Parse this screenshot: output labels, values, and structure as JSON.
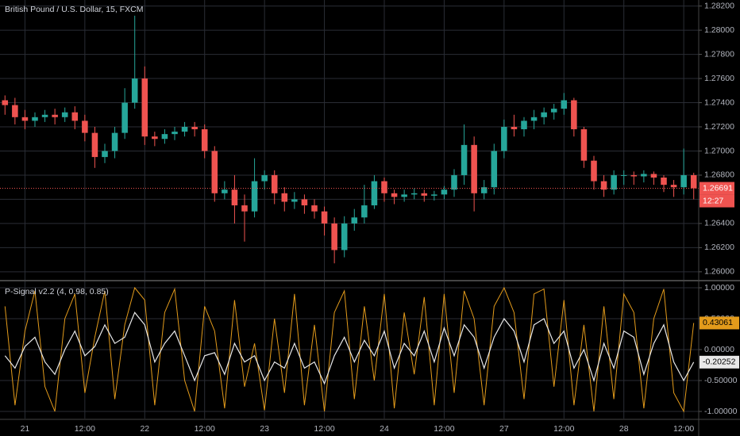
{
  "chart_data": [
    {
      "type": "candlestick",
      "title": "British Pound / U.S. Dollar, 15, FXCM",
      "categories": [
        null,
        null,
        "21",
        null,
        null,
        null,
        null,
        null,
        "12:00",
        null,
        null,
        null,
        null,
        null,
        "22",
        null,
        null,
        null,
        null,
        null,
        "12:00",
        null,
        null,
        null,
        null,
        null,
        "23",
        null,
        null,
        null,
        null,
        null,
        "12:00",
        null,
        null,
        null,
        null,
        null,
        "24",
        null,
        null,
        null,
        null,
        null,
        "12:00",
        null,
        null,
        null,
        null,
        null,
        "27",
        null,
        null,
        null,
        null,
        null,
        "12:00",
        null,
        null,
        null,
        null,
        null,
        "28",
        null,
        null,
        null,
        null,
        null,
        "12:00",
        null
      ],
      "open": [
        1.2742,
        1.2738,
        1.2728,
        1.2725,
        1.2728,
        1.273,
        1.2728,
        1.2732,
        1.2725,
        1.2715,
        1.2695,
        1.27,
        1.2715,
        1.274,
        1.276,
        1.2712,
        1.271,
        1.2714,
        1.2716,
        1.272,
        1.2718,
        1.27,
        1.2665,
        1.2668,
        1.2655,
        1.265,
        1.2675,
        1.268,
        1.2665,
        1.2658,
        1.266,
        1.2655,
        1.265,
        1.264,
        1.2618,
        1.264,
        1.2645,
        1.2655,
        1.2675,
        1.2665,
        1.2662,
        1.2664,
        1.2665,
        1.2663,
        1.2664,
        1.2668,
        1.268,
        1.2705,
        1.2665,
        1.267,
        1.27,
        1.272,
        1.2718,
        1.2725,
        1.2728,
        1.2732,
        1.2735,
        1.2742,
        1.2718,
        1.2692,
        1.2675,
        1.2668,
        1.268,
        1.268,
        1.2679,
        1.2681,
        1.2678,
        1.2672,
        1.267,
        1.268
      ],
      "high": [
        1.2746,
        1.2744,
        1.2734,
        1.2732,
        1.2734,
        1.2735,
        1.2736,
        1.2737,
        1.273,
        1.272,
        1.2706,
        1.272,
        1.2752,
        1.2812,
        1.277,
        1.2716,
        1.2718,
        1.272,
        1.2724,
        1.2724,
        1.2722,
        1.2704,
        1.2675,
        1.268,
        1.2664,
        1.2694,
        1.2684,
        1.2684,
        1.267,
        1.2666,
        1.2664,
        1.266,
        1.2654,
        1.2645,
        1.2646,
        1.2652,
        1.2672,
        1.268,
        1.2678,
        1.2668,
        1.2668,
        1.2669,
        1.2668,
        1.2667,
        1.2671,
        1.2685,
        1.2722,
        1.2712,
        1.2676,
        1.2706,
        1.2726,
        1.273,
        1.2728,
        1.2734,
        1.2736,
        1.2739,
        1.2748,
        1.2744,
        1.272,
        1.2696,
        1.268,
        1.2684,
        1.2684,
        1.2683,
        1.2684,
        1.2683,
        1.268,
        1.2676,
        1.2702,
        1.2682
      ],
      "low": [
        1.273,
        1.2722,
        1.2718,
        1.272,
        1.2724,
        1.2722,
        1.2724,
        1.2718,
        1.2708,
        1.2686,
        1.269,
        1.2694,
        1.271,
        1.2735,
        1.2705,
        1.2704,
        1.2706,
        1.2709,
        1.2712,
        1.2712,
        1.2694,
        1.2658,
        1.266,
        1.264,
        1.2625,
        1.2645,
        1.2668,
        1.2656,
        1.265,
        1.2652,
        1.2648,
        1.2644,
        1.263,
        1.2607,
        1.2612,
        1.2634,
        1.264,
        1.2652,
        1.2658,
        1.2656,
        1.2658,
        1.266,
        1.2658,
        1.2659,
        1.266,
        1.2662,
        1.2672,
        1.265,
        1.266,
        1.2664,
        1.2694,
        1.2712,
        1.2712,
        1.2718,
        1.2722,
        1.2726,
        1.273,
        1.2712,
        1.2686,
        1.2668,
        1.2662,
        1.2664,
        1.2672,
        1.2672,
        1.2674,
        1.2672,
        1.2666,
        1.2662,
        1.2664,
        1.266
      ],
      "close": [
        1.2738,
        1.2728,
        1.2725,
        1.2728,
        1.273,
        1.2728,
        1.2732,
        1.2725,
        1.2715,
        1.2695,
        1.27,
        1.2715,
        1.274,
        1.276,
        1.2712,
        1.271,
        1.2714,
        1.2716,
        1.272,
        1.2718,
        1.27,
        1.2665,
        1.2668,
        1.2655,
        1.265,
        1.2675,
        1.268,
        1.2665,
        1.2658,
        1.266,
        1.2655,
        1.265,
        1.264,
        1.2618,
        1.264,
        1.2645,
        1.2655,
        1.2675,
        1.2665,
        1.2662,
        1.2664,
        1.2665,
        1.2663,
        1.2664,
        1.2668,
        1.268,
        1.2705,
        1.2665,
        1.267,
        1.27,
        1.272,
        1.2718,
        1.2725,
        1.2728,
        1.2732,
        1.2735,
        1.2742,
        1.2718,
        1.2692,
        1.2675,
        1.2668,
        1.268,
        1.268,
        1.2679,
        1.2681,
        1.2678,
        1.2672,
        1.267,
        1.268,
        1.26691
      ],
      "up_color": "#26a69a",
      "down_color": "#ef5350",
      "countdown": "12:27",
      "ylim": [
        1.2594,
        1.2825
      ],
      "yticks": [
        {
          "value": 1.282,
          "label": "1.28200"
        },
        {
          "value": 1.28,
          "label": "1.28000"
        },
        {
          "value": 1.278,
          "label": "1.27800"
        },
        {
          "value": 1.276,
          "label": "1.27600"
        },
        {
          "value": 1.274,
          "label": "1.27400"
        },
        {
          "value": 1.272,
          "label": "1.27200"
        },
        {
          "value": 1.27,
          "label": "1.27000"
        },
        {
          "value": 1.268,
          "label": "1.26800"
        },
        {
          "value": 1.266,
          "label": "1.26600"
        },
        {
          "value": 1.264,
          "label": "1.26400"
        },
        {
          "value": 1.262,
          "label": "1.26200"
        },
        {
          "value": 1.26,
          "label": "1.26000"
        }
      ],
      "grid": true
    },
    {
      "type": "line",
      "title": "P-Signal v2.2 (4, 0.98, 0.85)",
      "series": [
        {
          "color": "#e39b1b",
          "values": [
            0.7,
            -0.9,
            0.3,
            0.95,
            -0.6,
            -1,
            0.5,
            0.9,
            -0.7,
            0.2,
            0.95,
            -0.8,
            0.4,
            1,
            0.8,
            -0.9,
            0.6,
            0.98,
            -0.5,
            -1,
            0.7,
            0.3,
            -0.95,
            0.8,
            -0.6,
            0.1,
            -0.98,
            0.5,
            -0.7,
            0.9,
            -0.9,
            0.4,
            -1,
            0.6,
            0.95,
            -0.8,
            0.7,
            -0.5,
            0.9,
            -0.95,
            0.6,
            -0.4,
            0.85,
            -0.9,
            0.9,
            -0.7,
            0.95,
            0.5,
            -0.9,
            0.7,
            1,
            0.6,
            -0.8,
            0.9,
            0.98,
            -0.6,
            0.8,
            -0.9,
            0.4,
            -1,
            0.7,
            -0.8,
            0.9,
            0.6,
            -0.95,
            0.5,
            0.98,
            -0.7,
            -1,
            0.43061
          ]
        },
        {
          "color": "#e8e8e8",
          "values": [
            -0.1,
            -0.3,
            0.05,
            0.2,
            -0.2,
            -0.4,
            0,
            0.3,
            -0.1,
            0.05,
            0.4,
            0.1,
            0.2,
            0.6,
            0.4,
            -0.2,
            0.1,
            0.3,
            -0.1,
            -0.5,
            -0.1,
            -0.05,
            -0.4,
            0.1,
            -0.2,
            -0.1,
            -0.5,
            -0.2,
            -0.3,
            0.1,
            -0.3,
            -0.2,
            -0.55,
            -0.1,
            0.2,
            -0.2,
            0.15,
            -0.1,
            0.3,
            -0.3,
            0.1,
            -0.1,
            0.3,
            -0.2,
            0.35,
            -0.1,
            0.4,
            0.2,
            -0.3,
            0.2,
            0.5,
            0.3,
            -0.2,
            0.4,
            0.5,
            0.1,
            0.3,
            -0.3,
            0,
            -0.5,
            0.1,
            -0.3,
            0.3,
            0.2,
            -0.4,
            0.1,
            0.4,
            -0.2,
            -0.5,
            -0.20252
          ]
        }
      ],
      "ylim": [
        -1.115,
        1.09
      ],
      "yticks": [
        {
          "value": 1,
          "label": "1.00000"
        },
        {
          "value": 0.5,
          "label": "0.50000"
        },
        {
          "value": 0,
          "label": "0.00000"
        },
        {
          "value": -0.5,
          "label": "-0.50000"
        },
        {
          "value": -1,
          "label": "-1.00000"
        }
      ],
      "grid": true
    }
  ]
}
